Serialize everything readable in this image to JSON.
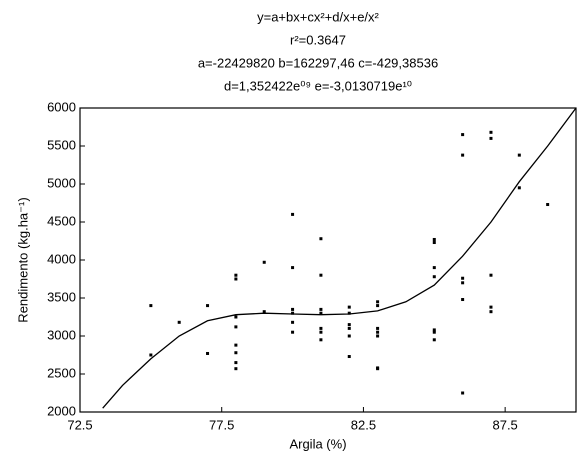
{
  "chart_data": {
    "type": "scatter",
    "title_lines": [
      "y=a+bx+cx²+d/x+e/x²",
      "r²=0.3647",
      "a=-22429820 b=162297,46 c=-429,38536",
      "d=1,352422e⁰⁹ e=-3,0130719e¹⁰"
    ],
    "x_label": "Argila (%)",
    "y_label": "Rendimento (kg.ha⁻¹)",
    "xlim": [
      72.5,
      90
    ],
    "ylim": [
      2000,
      6000
    ],
    "xticks": [
      72.5,
      77.5,
      82.5,
      87.5
    ],
    "yticks": [
      2000,
      2500,
      3000,
      3500,
      4000,
      4500,
      5000,
      5500,
      6000
    ],
    "grid": false,
    "series": [
      {
        "mode": "markers",
        "color": "#000000",
        "x": [
          75,
          75,
          76,
          77,
          77,
          78,
          78,
          78,
          78,
          78,
          78,
          78,
          78,
          79,
          79,
          80,
          80,
          80,
          80,
          80,
          80,
          81,
          81,
          81,
          81,
          81,
          81,
          81,
          82,
          82,
          82,
          82,
          82,
          82,
          83,
          83,
          83,
          83,
          83,
          83,
          83,
          85,
          85,
          85,
          85,
          85,
          85,
          85,
          86,
          86,
          86,
          86,
          86,
          86,
          87,
          87,
          87,
          87,
          87,
          88,
          88,
          89
        ],
        "values": [
          3400,
          2750,
          3180,
          3400,
          2770,
          3800,
          3750,
          3250,
          3120,
          2880,
          2780,
          2650,
          2570,
          3970,
          3320,
          4600,
          3900,
          3350,
          3300,
          3180,
          3050,
          4280,
          3800,
          3350,
          3300,
          3100,
          3050,
          2950,
          3380,
          3300,
          3150,
          3100,
          3000,
          2730,
          3450,
          3400,
          3100,
          3050,
          3000,
          2580,
          2570,
          4270,
          4230,
          3900,
          3780,
          3080,
          3050,
          2950,
          5650,
          5380,
          3760,
          3700,
          3480,
          2250,
          5680,
          5600,
          3800,
          3380,
          3320,
          5380,
          4950,
          4730
        ]
      },
      {
        "mode": "line",
        "color": "#000000",
        "x": [
          73.3,
          74,
          75,
          76,
          77,
          78,
          79,
          80,
          81,
          82,
          83,
          84,
          85,
          86,
          87,
          88,
          89,
          90
        ],
        "values": [
          2050,
          2350,
          2700,
          3000,
          3200,
          3280,
          3300,
          3290,
          3280,
          3290,
          3330,
          3450,
          3670,
          4050,
          4500,
          5030,
          5500,
          6000
        ]
      }
    ]
  }
}
